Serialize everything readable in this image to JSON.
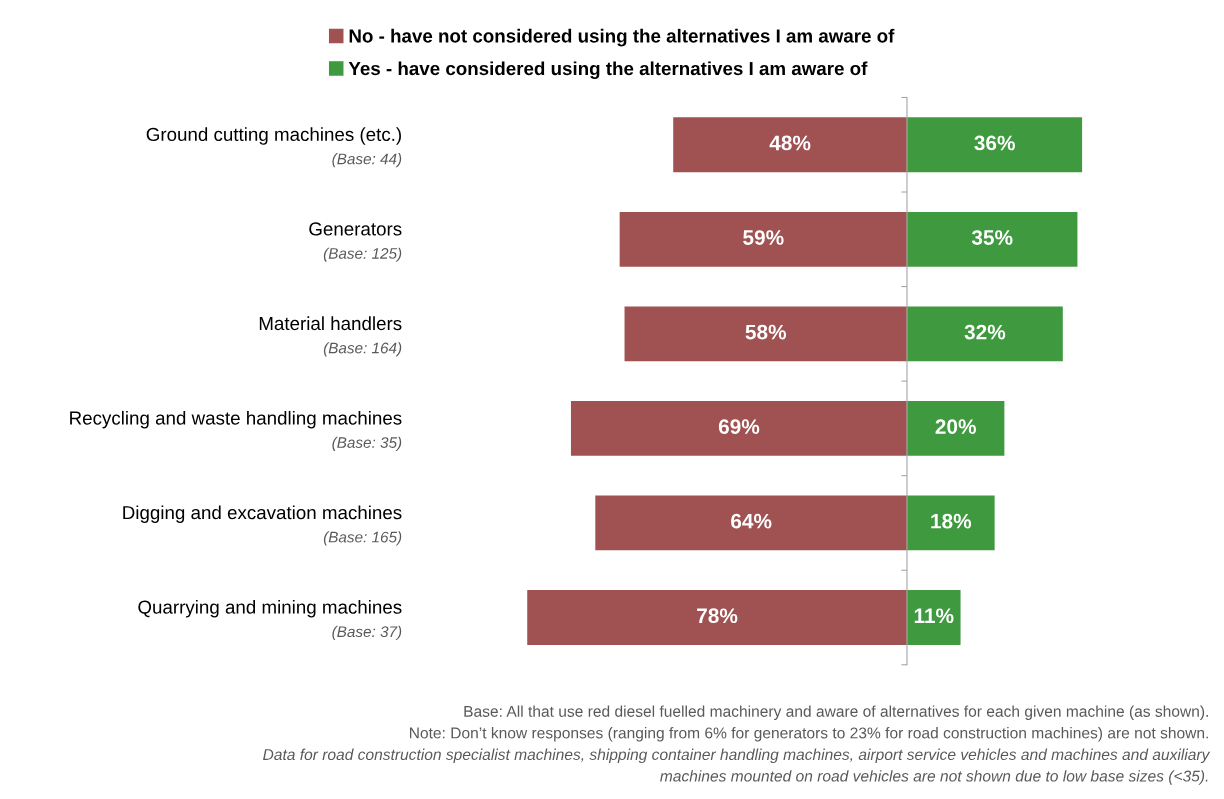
{
  "chart_data": [
    {
      "type": "bar",
      "orientation": "horizontal",
      "legend": "top",
      "xlim": [
        78,
        0
      ],
      "categories": [
        "Ground cutting machines (etc.)",
        "Generators",
        "Material handlers",
        "Recycling and waste handling machines",
        "Digging and excavation machines",
        "Quarrying and mining machines"
      ],
      "series": [
        {
          "name": "No - have not considered using the alternatives I am aware of",
          "color": "#a05252",
          "values": [
            48,
            59,
            58,
            69,
            64,
            78
          ],
          "value_labels": [
            "48%",
            "59%",
            "58%",
            "69%",
            "64%",
            "78%"
          ]
        }
      ],
      "annotations": [
        "(Base: 44)",
        "(Base: 125)",
        "(Base: 164)",
        "(Base: 35)",
        "(Base: 165)",
        "(Base: 37)",
        "Base: All that use red diesel fuelled machinery and aware of alternatives for each given machine (as shown).",
        "Note: Don’t know responses (ranging from 6% for generators to 23% for road construction machines) are not shown.",
        "Data for road construction specialist machines, shipping container handling machines, airport service vehicles and machines and auxiliary",
        "machines mounted on road vehicles are not shown due to low base sizes (<35)."
      ]
    },
    {
      "type": "bar",
      "orientation": "horizontal",
      "legend": "top",
      "xlim": [
        0,
        36
      ],
      "tick_labels": false,
      "categories": [
        null,
        null,
        null,
        null,
        null,
        null
      ],
      "series": [
        {
          "name": "Yes - have considered using the alternatives I am aware of",
          "color": "#3f9a3f",
          "values": [
            36,
            35,
            32,
            20,
            18,
            11
          ],
          "value_labels": [
            "36%",
            "35%",
            "32%",
            "20%",
            "18%",
            "11%"
          ]
        }
      ]
    }
  ]
}
